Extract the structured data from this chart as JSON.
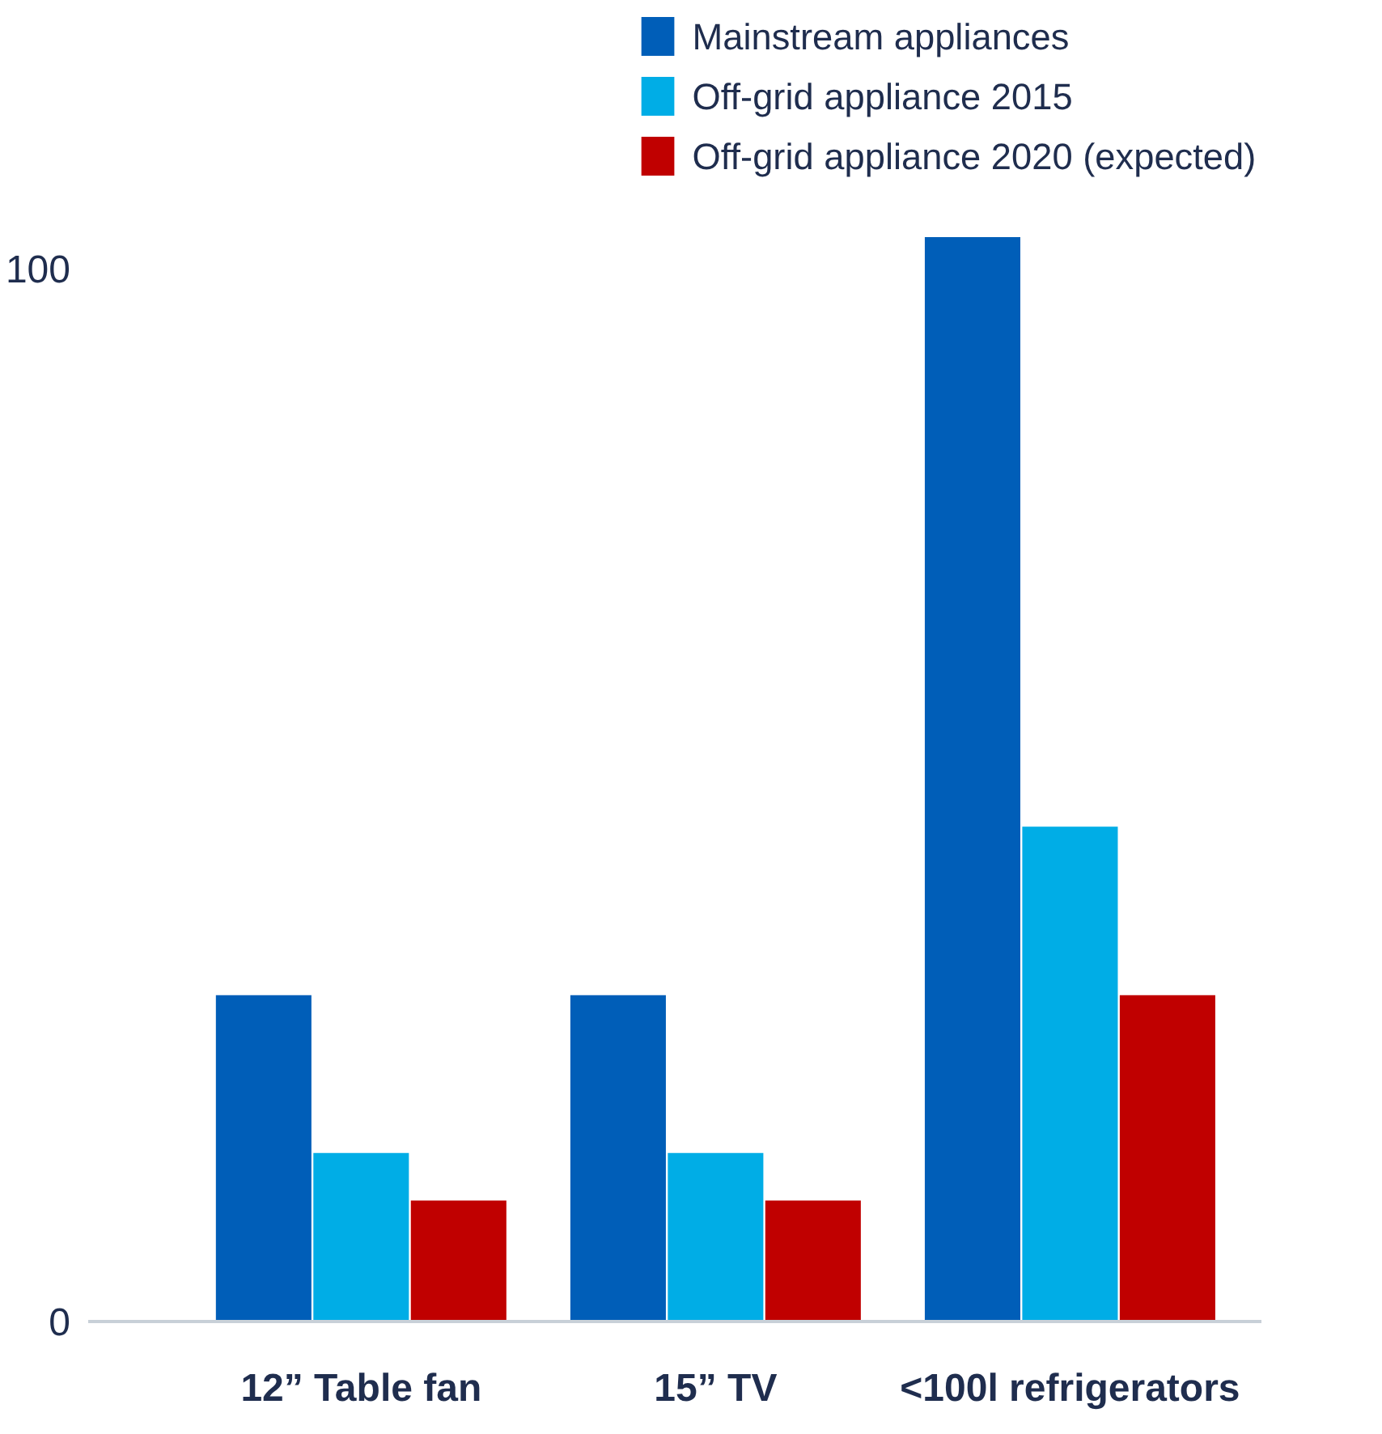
{
  "chart_data": {
    "type": "bar",
    "categories": [
      "12” Table fan",
      "15” TV",
      "<100l refrigerators"
    ],
    "series": [
      {
        "name": "Mainstream appliances",
        "color": "#005eb8",
        "values": [
          31,
          31,
          103
        ]
      },
      {
        "name": "Off-grid appliance 2015",
        "color": "#00ade6",
        "values": [
          16,
          16,
          47
        ]
      },
      {
        "name": "Off-grid appliance 2020 (expected)",
        "color": "#c00000",
        "values": [
          11.5,
          11.5,
          31
        ]
      }
    ],
    "ylim": [
      0,
      103
    ],
    "yticks": [
      0,
      100
    ],
    "grid": false,
    "legend": "top right"
  }
}
